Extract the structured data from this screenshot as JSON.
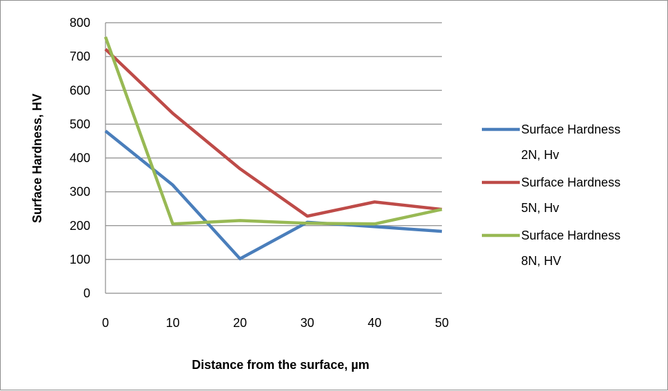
{
  "chart_data": {
    "type": "line",
    "title": "",
    "xlabel": "Distance from the surface, µm",
    "ylabel": "Surface Hardness, HV",
    "x": [
      0,
      10,
      20,
      30,
      40,
      50
    ],
    "x_ticks": [
      "0",
      "10",
      "20",
      "30",
      "40",
      "50"
    ],
    "xlim": [
      0,
      50
    ],
    "ylim": [
      0,
      800
    ],
    "y_ticks": [
      "0",
      "100",
      "200",
      "300",
      "400",
      "500",
      "600",
      "700",
      "800"
    ],
    "grid": true,
    "legend_position": "right",
    "series": [
      {
        "name": "Surface Hardness 2N, Hv",
        "legend_lines": [
          "Surface Hardness",
          "2N, Hv"
        ],
        "color": "#4a7ebb",
        "values": [
          480,
          320,
          102,
          210,
          197,
          183
        ]
      },
      {
        "name": "Surface Hardness 5N, Hv",
        "legend_lines": [
          "Surface Hardness",
          "5N, Hv"
        ],
        "color": "#be4b48",
        "values": [
          722,
          532,
          368,
          228,
          270,
          248
        ]
      },
      {
        "name": "Surface Hardness 8N, HV",
        "legend_lines": [
          "Surface Hardness",
          "8N, HV"
        ],
        "color": "#98b954",
        "values": [
          758,
          205,
          215,
          207,
          205,
          248
        ]
      }
    ]
  }
}
